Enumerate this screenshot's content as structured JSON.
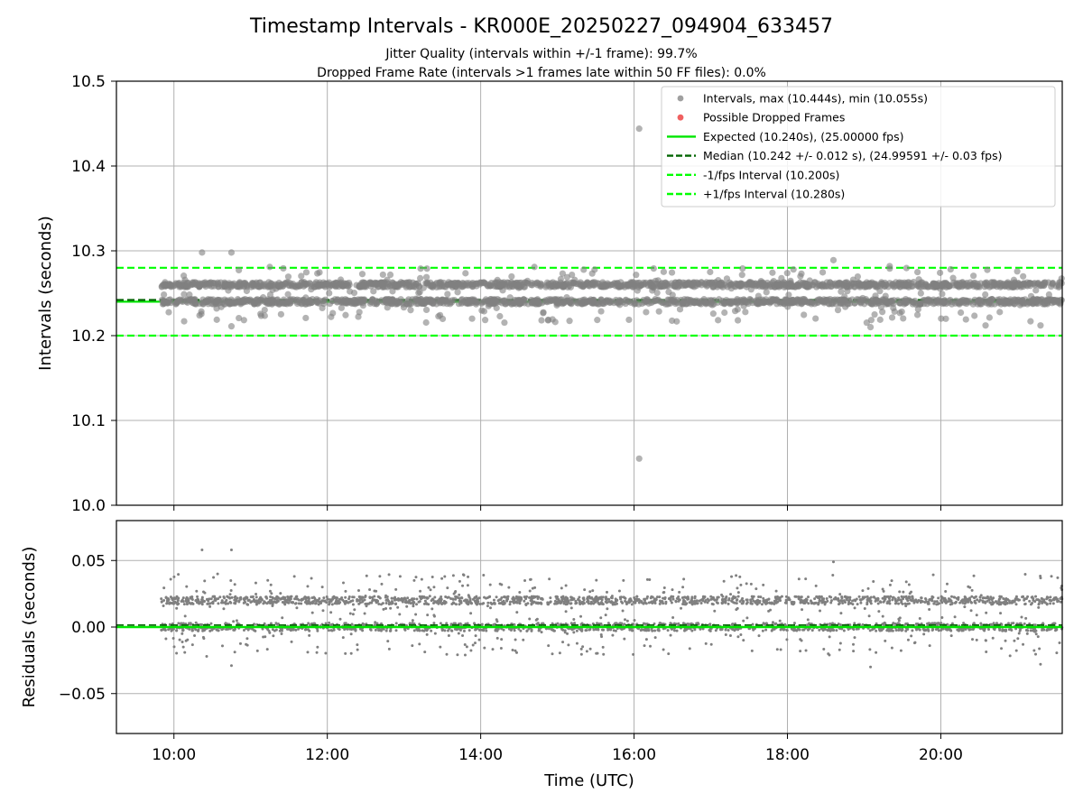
{
  "figure": {
    "title": "Timestamp Intervals - KR000E_20250227_094904_633457",
    "subtitle_line1": "Jitter Quality (intervals within +/-1 frame): 99.7%",
    "subtitle_line2": "Dropped Frame Rate (intervals >1 frames late within 50 FF files): 0.0%"
  },
  "colors": {
    "points": "#808080",
    "dropped": "#ff0000",
    "expected": "#00e600",
    "median": "#006400",
    "fps_band": "#00ff00",
    "grid": "#b0b0b0"
  },
  "chart_data": [
    {
      "type": "scatter",
      "ylabel": "Intervals (seconds)",
      "xlim": [
        "09:15",
        "21:35"
      ],
      "ylim": [
        10.0,
        10.5
      ],
      "yticks": [
        "10.0",
        "10.1",
        "10.2",
        "10.3",
        "10.4",
        "10.5"
      ],
      "grid": true,
      "legend_position": "top-right",
      "legend": [
        {
          "label": "Intervals, max (10.444s), min (10.055s)",
          "kind": "marker",
          "color": "#a0a0a0"
        },
        {
          "label": "Possible Dropped Frames",
          "kind": "marker",
          "color": "#f06060"
        },
        {
          "label": "Expected (10.240s), (25.00000 fps)",
          "kind": "solid",
          "color": "#00e600"
        },
        {
          "label": "Median (10.242 +/- 0.012 s), (24.99591 +/- 0.03 fps)",
          "kind": "dashed",
          "color": "#006400"
        },
        {
          "label": "-1/fps Interval (10.200s)",
          "kind": "dashed",
          "color": "#00ff00"
        },
        {
          "label": "+1/fps Interval (10.280s)",
          "kind": "dashed",
          "color": "#00ff00"
        }
      ],
      "lines": {
        "expected": 10.24,
        "median": 10.242,
        "minus_fps": 10.2,
        "plus_fps": 10.28
      },
      "series": [
        {
          "name": "Intervals, max (10.444s), min (10.055s)",
          "x_range": [
            "09:50",
            "21:35"
          ],
          "levels": [
            10.24,
            10.26
          ],
          "outliers": [
            {
              "x": "16:04",
              "y": 10.444
            },
            {
              "x": "16:04",
              "y": 10.055
            },
            {
              "x": "10:22",
              "y": 10.298
            },
            {
              "x": "10:45",
              "y": 10.298
            },
            {
              "x": "18:36",
              "y": 10.289
            },
            {
              "x": "11:15",
              "y": 10.281
            },
            {
              "x": "14:42",
              "y": 10.281
            },
            {
              "x": "19:20",
              "y": 10.282
            },
            {
              "x": "10:45",
              "y": 10.211
            },
            {
              "x": "19:05",
              "y": 10.21
            },
            {
              "x": "20:35",
              "y": 10.212
            },
            {
              "x": "21:18",
              "y": 10.212
            }
          ]
        },
        {
          "name": "Possible Dropped Frames",
          "values": []
        }
      ]
    },
    {
      "type": "scatter",
      "ylabel": "Residuals (seconds)",
      "xlabel": "Time (UTC)",
      "xlim": [
        "09:15",
        "21:35"
      ],
      "ylim": [
        -0.08,
        0.08
      ],
      "yticks": [
        "−0.05",
        "0.00",
        "0.05"
      ],
      "xticks": [
        "10:00",
        "12:00",
        "14:00",
        "16:00",
        "18:00",
        "20:00"
      ],
      "grid": true,
      "zero_line": 0.0,
      "series": [
        {
          "name": "Residuals",
          "levels": [
            0.0,
            0.02
          ],
          "outliers": [
            {
              "x": "10:22",
              "y": 0.058
            },
            {
              "x": "10:45",
              "y": 0.058
            },
            {
              "x": "18:36",
              "y": 0.049
            },
            {
              "x": "10:45",
              "y": -0.029
            },
            {
              "x": "19:05",
              "y": -0.03
            },
            {
              "x": "21:18",
              "y": -0.028
            }
          ]
        }
      ]
    }
  ]
}
